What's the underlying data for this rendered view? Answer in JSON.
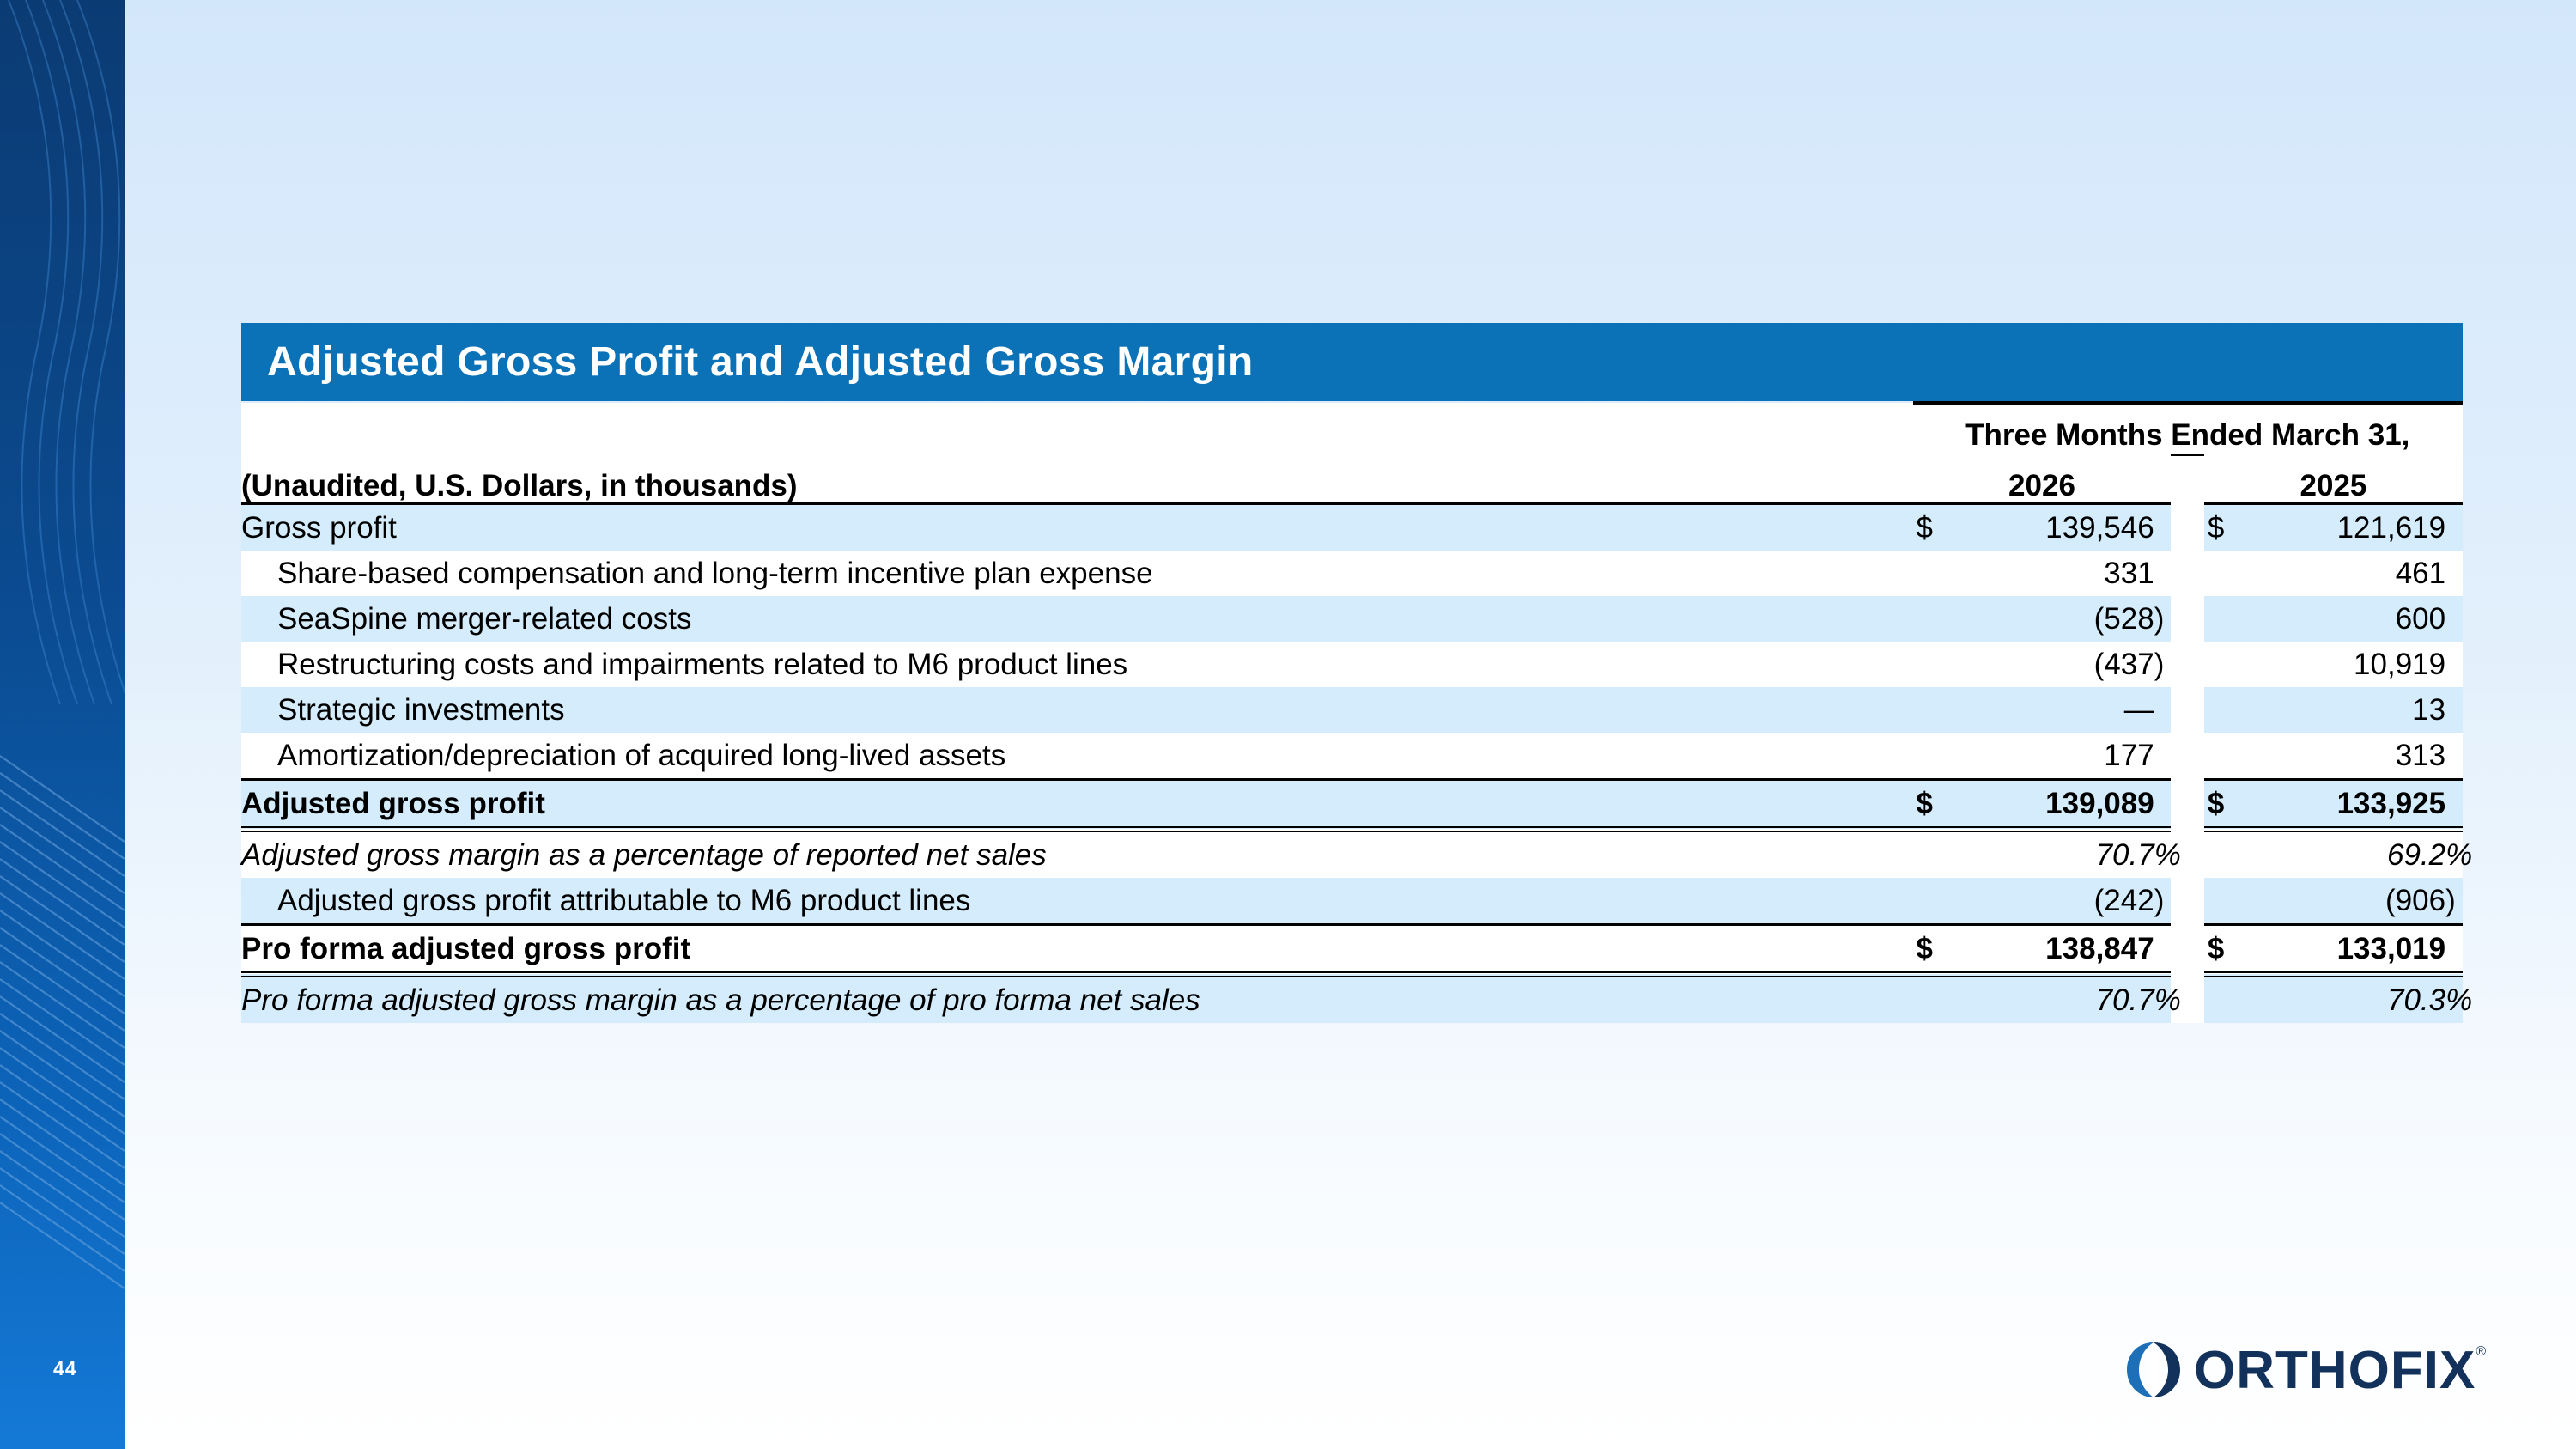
{
  "slide": {
    "page_number": "44",
    "brand": "ORTHOFIX",
    "brand_mark": "®",
    "colors": {
      "header_blue": "#0b72b7",
      "row_shade": "#d4ecfb",
      "side_band": "#0b4a8f",
      "logo_navy": "#12315b"
    }
  },
  "table": {
    "title": "Adjusted Gross Profit and Adjusted Gross Margin",
    "period_header": "Three Months Ended March 31,",
    "units_label": "(Unaudited, U.S. Dollars, in thousands)",
    "years": [
      "2026",
      "2025"
    ],
    "rows": [
      {
        "label": "Gross profit",
        "sym1": "$",
        "v1": "139,546",
        "p1": "",
        "sym2": "$",
        "v2": "121,619",
        "p2": ""
      },
      {
        "label": "Share-based compensation and long-term incentive plan expense",
        "sym1": "",
        "v1": "331",
        "p1": "",
        "sym2": "",
        "v2": "461",
        "p2": ""
      },
      {
        "label": "SeaSpine merger-related costs",
        "sym1": "",
        "v1": "(528",
        "p1": ")",
        "sym2": "",
        "v2": "600",
        "p2": ""
      },
      {
        "label": "Restructuring costs and impairments related to M6 product lines",
        "sym1": "",
        "v1": "(437",
        "p1": ")",
        "sym2": "",
        "v2": "10,919",
        "p2": ""
      },
      {
        "label": "Strategic investments",
        "sym1": "",
        "v1": "—",
        "p1": "",
        "sym2": "",
        "v2": "13",
        "p2": ""
      },
      {
        "label": "Amortization/depreciation of acquired long-lived assets",
        "sym1": "",
        "v1": "177",
        "p1": "",
        "sym2": "",
        "v2": "313",
        "p2": ""
      },
      {
        "label": "Adjusted gross profit",
        "sym1": "$",
        "v1": "139,089",
        "p1": "",
        "sym2": "$",
        "v2": "133,925",
        "p2": ""
      },
      {
        "label": "Adjusted gross margin as a percentage of reported net sales",
        "sym1": "",
        "v1": "70.7",
        "p1": "%",
        "sym2": "",
        "v2": "69.2",
        "p2": "%"
      },
      {
        "label": "Adjusted gross profit attributable to M6 product lines",
        "sym1": "",
        "v1": "(242",
        "p1": ")",
        "sym2": "",
        "v2": "(906",
        "p2": ")"
      },
      {
        "label": "Pro forma adjusted gross profit",
        "sym1": "$",
        "v1": "138,847",
        "p1": "",
        "sym2": "$",
        "v2": "133,019",
        "p2": ""
      },
      {
        "label": "Pro forma adjusted gross margin as a percentage of pro forma net sales",
        "sym1": "",
        "v1": "70.7",
        "p1": "%",
        "sym2": "",
        "v2": "70.3",
        "p2": "%"
      }
    ]
  }
}
